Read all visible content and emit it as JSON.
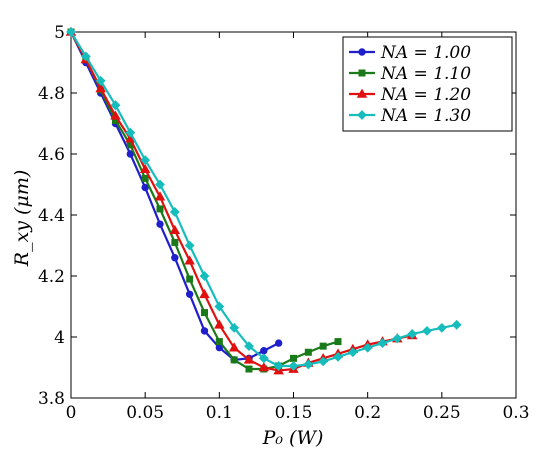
{
  "chart_data": {
    "type": "line",
    "xlabel": "P₀ (W)",
    "ylabel": "R_xy (μm)",
    "xlim": [
      0,
      0.3
    ],
    "ylim": [
      3.8,
      5.0
    ],
    "xticks": [
      "0",
      "0.05",
      "0.1",
      "0.15",
      "0.2",
      "0.25",
      "0.3"
    ],
    "yticks": [
      "3.8",
      "4",
      "4.2",
      "4.4",
      "4.6",
      "4.8",
      "5"
    ],
    "xtick_values": [
      0,
      0.05,
      0.1,
      0.15,
      0.2,
      0.25,
      0.3
    ],
    "ytick_values": [
      3.8,
      4.0,
      4.2,
      4.4,
      4.6,
      4.8,
      5.0
    ],
    "grid": false,
    "legend_position": "top-right",
    "series": [
      {
        "name": "NA = 1.00",
        "color": "#1f1fcc",
        "marker": "circle",
        "x": [
          0,
          0.01,
          0.02,
          0.03,
          0.04,
          0.05,
          0.06,
          0.07,
          0.08,
          0.09,
          0.1,
          0.11,
          0.12,
          0.13,
          0.14
        ],
        "y": [
          5.0,
          4.9,
          4.8,
          4.7,
          4.6,
          4.49,
          4.37,
          4.26,
          4.14,
          4.02,
          3.965,
          3.925,
          3.93,
          3.955,
          3.98
        ]
      },
      {
        "name": "NA = 1.10",
        "color": "#1a7a1a",
        "marker": "square",
        "x": [
          0,
          0.01,
          0.02,
          0.03,
          0.04,
          0.05,
          0.06,
          0.07,
          0.08,
          0.09,
          0.1,
          0.11,
          0.12,
          0.13,
          0.14,
          0.15,
          0.16,
          0.17,
          0.18
        ],
        "y": [
          5.0,
          4.91,
          4.81,
          4.71,
          4.63,
          4.52,
          4.42,
          4.31,
          4.19,
          4.08,
          3.985,
          3.925,
          3.895,
          3.895,
          3.905,
          3.93,
          3.95,
          3.97,
          3.985
        ]
      },
      {
        "name": "NA = 1.20",
        "color": "#e01010",
        "marker": "triangle",
        "x": [
          0,
          0.01,
          0.02,
          0.03,
          0.04,
          0.05,
          0.06,
          0.07,
          0.08,
          0.09,
          0.1,
          0.11,
          0.12,
          0.13,
          0.14,
          0.15,
          0.16,
          0.17,
          0.18,
          0.19,
          0.2,
          0.21,
          0.22,
          0.23
        ],
        "y": [
          5.0,
          4.91,
          4.815,
          4.725,
          4.65,
          4.55,
          4.46,
          4.35,
          4.25,
          4.14,
          4.04,
          3.965,
          3.925,
          3.9,
          3.89,
          3.895,
          3.915,
          3.93,
          3.945,
          3.96,
          3.975,
          3.985,
          3.995,
          4.005
        ]
      },
      {
        "name": "NA = 1.30",
        "color": "#17bcbc",
        "marker": "diamond",
        "x": [
          0,
          0.01,
          0.02,
          0.03,
          0.04,
          0.05,
          0.06,
          0.07,
          0.08,
          0.09,
          0.1,
          0.11,
          0.12,
          0.13,
          0.14,
          0.15,
          0.16,
          0.17,
          0.18,
          0.19,
          0.2,
          0.21,
          0.22,
          0.23,
          0.24,
          0.25,
          0.26
        ],
        "y": [
          5.0,
          4.92,
          4.84,
          4.76,
          4.67,
          4.58,
          4.5,
          4.41,
          4.3,
          4.2,
          4.1,
          4.03,
          3.97,
          3.93,
          3.905,
          3.905,
          3.91,
          3.92,
          3.935,
          3.95,
          3.965,
          3.98,
          3.995,
          4.01,
          4.02,
          4.03,
          4.04
        ]
      }
    ]
  }
}
